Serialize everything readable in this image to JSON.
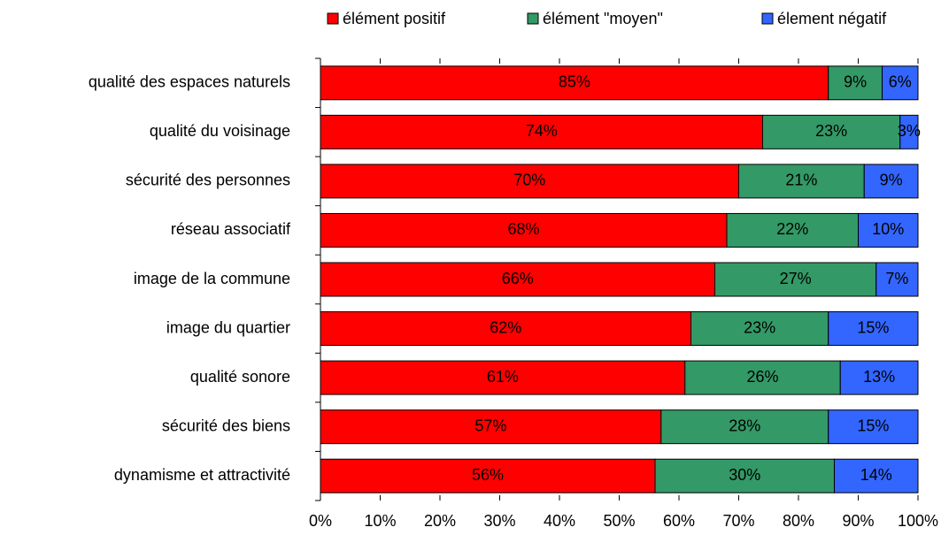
{
  "chart_data": {
    "type": "stacked_bar_horizontal",
    "categories": [
      "qualité des espaces naturels",
      "qualité du voisinage",
      "sécurité des personnes",
      "réseau associatif",
      "image de la commune",
      "image du quartier",
      "qualité sonore",
      "sécurité des biens",
      "dynamisme et attractivité"
    ],
    "series": [
      {
        "name": "élément positif",
        "color": "#ff0000",
        "values": [
          85,
          74,
          70,
          68,
          66,
          62,
          61,
          57,
          56
        ],
        "value_labels": [
          "85%",
          "74%",
          "70%",
          "68%",
          "66%",
          "62%",
          "61%",
          "57%",
          "56%"
        ]
      },
      {
        "name": "élément \"moyen\"",
        "color": "#339966",
        "values": [
          9,
          23,
          21,
          22,
          27,
          23,
          26,
          28,
          30
        ],
        "value_labels": [
          "9%",
          "23%",
          "21%",
          "22%",
          "27%",
          "23%",
          "26%",
          "28%",
          "30%"
        ]
      },
      {
        "name": "élement négatif",
        "color": "#3366ff",
        "values": [
          6,
          3,
          9,
          10,
          7,
          15,
          13,
          15,
          14
        ],
        "value_labels": [
          "6%",
          "3%",
          "9%",
          "10%",
          "7%",
          "15%",
          "13%",
          "15%",
          "14%"
        ]
      }
    ],
    "xlim": [
      0,
      100
    ],
    "xticks": [
      {
        "value": 0,
        "label": "0%"
      },
      {
        "value": 10,
        "label": "10%"
      },
      {
        "value": 20,
        "label": "20%"
      },
      {
        "value": 30,
        "label": "30%"
      },
      {
        "value": 40,
        "label": "40%"
      },
      {
        "value": 50,
        "label": "50%"
      },
      {
        "value": 60,
        "label": "60%"
      },
      {
        "value": 70,
        "label": "70%"
      },
      {
        "value": 80,
        "label": "80%"
      },
      {
        "value": 90,
        "label": "90%"
      },
      {
        "value": 100,
        "label": "100%"
      }
    ],
    "legend": "top"
  }
}
